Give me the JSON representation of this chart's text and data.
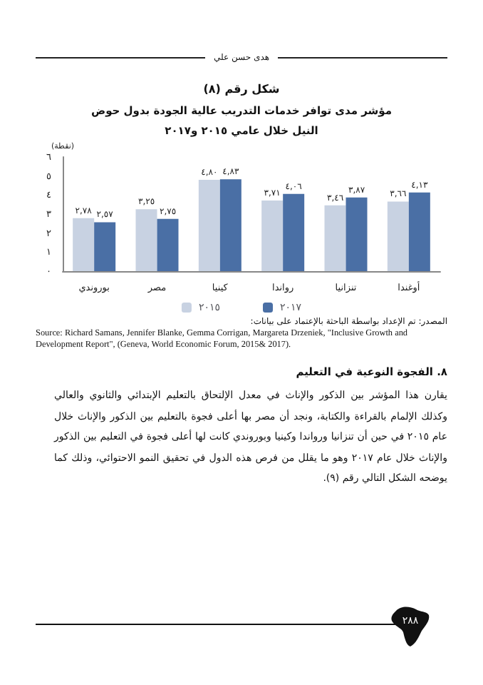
{
  "chart_data": {
    "type": "bar",
    "title": "شكل رقم (٨)",
    "subtitle": "مؤشر مدى توافر خدمات التدريب عالية الجودة بدول حوض النيل خلال عامي ٢٠١٥ و٢٠١٧",
    "ylabel": "(نقطة)",
    "categories": [
      "بوروندي",
      "مصر",
      "كينيا",
      "رواندا",
      "تنزانيا",
      "أوغندا"
    ],
    "series": [
      {
        "name": "٢٠١٥",
        "color": "#c8d2e2",
        "values": [
          2.78,
          3.25,
          4.8,
          3.71,
          3.46,
          3.66
        ],
        "value_labels": [
          "٢,٧٨",
          "٣,٢٥",
          "٤,٨٠",
          "٣,٧١",
          "٣,٤٦",
          "٣,٦٦"
        ]
      },
      {
        "name": "٢٠١٧",
        "color": "#4a6fa5",
        "values": [
          2.57,
          2.75,
          4.83,
          4.06,
          3.87,
          4.13
        ],
        "value_labels": [
          "٢,٥٧",
          "٢,٧٥",
          "٤,٨٣",
          "٤,٠٦",
          "٣,٨٧",
          "٤,١٣"
        ]
      }
    ],
    "ylim": [
      0,
      6
    ],
    "yticks": [
      {
        "value": 0,
        "label": "٠"
      },
      {
        "value": 1,
        "label": "١"
      },
      {
        "value": 2,
        "label": "٢"
      },
      {
        "value": 3,
        "label": "٣"
      },
      {
        "value": 4,
        "label": "٤"
      },
      {
        "value": 5,
        "label": "٥"
      },
      {
        "value": 6,
        "label": "٦"
      }
    ],
    "legend": "bottom",
    "annotations": [
      "هدى حسن علي",
      "المصدر: تم الإعداد بواسطة الباحثة بالإعتماد على بيانات:",
      "Source: Richard Samans, Jennifer Blanke, Gemma Corrigan, Margareta Drzeniek, \"Inclusive Growth and Development Report\", (Geneva, World Economic Forum, 2015& 2017).",
      "٨. الفجوة النوعية في التعليم",
      "يقارن هذا المؤشر بين الذكور والإناث في معدل الإلتحاق بالتعليم الإبتدائي والثانوي والعالي وكذلك الإلمام بالقراءة والكتابة، ونجد أن مصر بها أعلى فجوة بالتعليم بين الذكور والإناث خلال عام ٢٠١٥ في حين أن تنزانيا ورواندا وكينيا وبوروندي كانت لها أعلى فجوة في التعليم بين الذكور والإناث خلال عام ٢٠١٧ وهو ما يقلل من فرص هذه الدول في تحقيق النمو الاحتوائي، وذلك كما يوضحه الشكل التالي رقم (٩).",
      "٢٨٨"
    ]
  }
}
